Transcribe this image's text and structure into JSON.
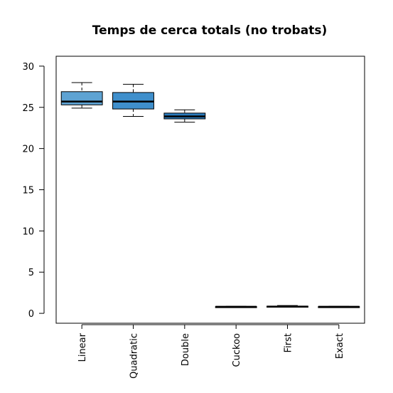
{
  "chart_data": {
    "type": "boxplot",
    "title": "Temps de cerca totals (no trobats)",
    "xlabel": "",
    "ylabel": "",
    "ylim": [
      -1.2,
      31.2
    ],
    "yticks": [
      0,
      5,
      10,
      15,
      20,
      25,
      30
    ],
    "grid": false,
    "categories": [
      "Linear",
      "Quadratic",
      "Double",
      "Cuckoo",
      "First",
      "Exact"
    ],
    "boxes": [
      {
        "name": "Linear",
        "min": 24.9,
        "q1": 25.3,
        "median": 25.7,
        "q3": 26.9,
        "max": 28.0,
        "color": "#5ea3d3"
      },
      {
        "name": "Quadratic",
        "min": 23.9,
        "q1": 24.8,
        "median": 25.7,
        "q3": 26.8,
        "max": 27.8,
        "color": "#3f8fcc"
      },
      {
        "name": "Double",
        "min": 23.2,
        "q1": 23.6,
        "median": 23.9,
        "q3": 24.3,
        "max": 24.7,
        "color": "#2a7bbd"
      },
      {
        "name": "Cuckoo",
        "min": 0.75,
        "q1": 0.78,
        "median": 0.8,
        "q3": 0.82,
        "max": 0.85,
        "color": "#2a7bbd"
      },
      {
        "name": "First",
        "min": 0.75,
        "q1": 0.78,
        "median": 0.82,
        "q3": 0.87,
        "max": 0.95,
        "color": "#2a7bbd"
      },
      {
        "name": "Exact",
        "min": 0.75,
        "q1": 0.78,
        "median": 0.8,
        "q3": 0.82,
        "max": 0.85,
        "color": "#2a7bbd"
      }
    ]
  }
}
